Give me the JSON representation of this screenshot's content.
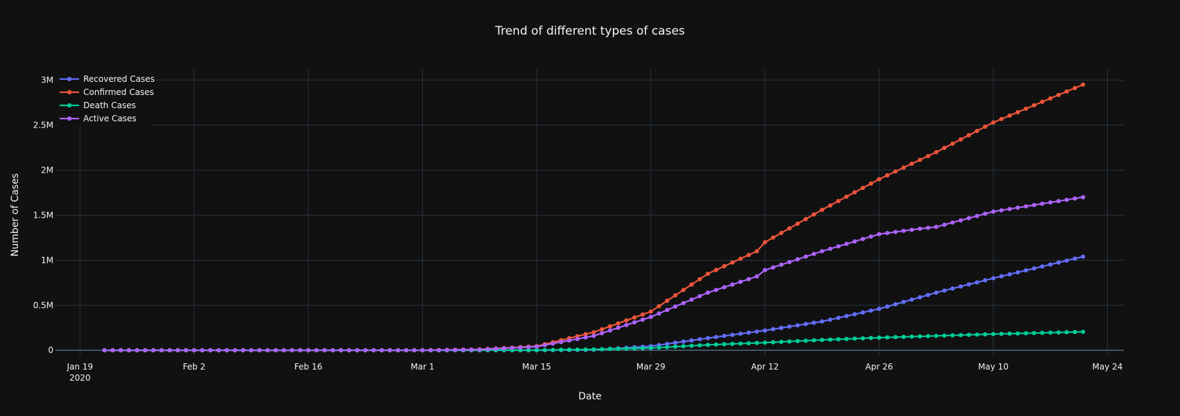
{
  "chart_data": {
    "type": "line",
    "title": "Trend of different types of cases",
    "xlabel": "Date",
    "ylabel": "Number of Cases",
    "grid": true,
    "legend_position": "top-left",
    "x_type": "date",
    "xlim": [
      "2020-01-16",
      "2020-05-26"
    ],
    "ylim": [
      -60000,
      3120000
    ],
    "x_ticks": [
      {
        "date": "2020-01-19",
        "label": "Jan 19",
        "sublabel": "2020"
      },
      {
        "date": "2020-02-02",
        "label": "Feb 2"
      },
      {
        "date": "2020-02-16",
        "label": "Feb 16"
      },
      {
        "date": "2020-03-01",
        "label": "Mar 1"
      },
      {
        "date": "2020-03-15",
        "label": "Mar 15"
      },
      {
        "date": "2020-03-29",
        "label": "Mar 29"
      },
      {
        "date": "2020-04-12",
        "label": "Apr 12"
      },
      {
        "date": "2020-04-26",
        "label": "Apr 26"
      },
      {
        "date": "2020-05-10",
        "label": "May 10"
      },
      {
        "date": "2020-05-24",
        "label": "May 24"
      }
    ],
    "y_ticks": [
      {
        "value": 0,
        "label": "0"
      },
      {
        "value": 500000,
        "label": "0.5M"
      },
      {
        "value": 1000000,
        "label": "1M"
      },
      {
        "value": 1500000,
        "label": "1.5M"
      },
      {
        "value": 2000000,
        "label": "2M"
      },
      {
        "value": 2500000,
        "label": "2.5M"
      },
      {
        "value": 3000000,
        "label": "3M"
      }
    ],
    "start_date": "2020-01-22",
    "end_date": "2020-05-21",
    "series": [
      {
        "name": "Recovered Cases",
        "color": "#636efa",
        "keypoints": [
          [
            "2020-01-22",
            0
          ],
          [
            "2020-02-16",
            0
          ],
          [
            "2020-03-01",
            0
          ],
          [
            "2020-03-15",
            0
          ],
          [
            "2020-03-22",
            5000
          ],
          [
            "2020-03-29",
            45000
          ],
          [
            "2020-04-05",
            135000
          ],
          [
            "2020-04-12",
            220000
          ],
          [
            "2020-04-19",
            320000
          ],
          [
            "2020-04-26",
            460000
          ],
          [
            "2020-05-03",
            640000
          ],
          [
            "2020-05-10",
            800000
          ],
          [
            "2020-05-21",
            1040000
          ]
        ]
      },
      {
        "name": "Confirmed Cases",
        "color": "#ef553b",
        "keypoints": [
          [
            "2020-01-22",
            0
          ],
          [
            "2020-02-16",
            0
          ],
          [
            "2020-03-01",
            0
          ],
          [
            "2020-03-08",
            10000
          ],
          [
            "2020-03-15",
            45000
          ],
          [
            "2020-03-22",
            200000
          ],
          [
            "2020-03-29",
            430000
          ],
          [
            "2020-04-05",
            850000
          ],
          [
            "2020-04-11",
            1100000
          ],
          [
            "2020-04-12",
            1200000
          ],
          [
            "2020-04-19",
            1560000
          ],
          [
            "2020-04-26",
            1900000
          ],
          [
            "2020-05-03",
            2200000
          ],
          [
            "2020-05-10",
            2530000
          ],
          [
            "2020-05-21",
            2950000
          ]
        ]
      },
      {
        "name": "Death Cases",
        "color": "#00cc96",
        "keypoints": [
          [
            "2020-01-22",
            0
          ],
          [
            "2020-03-01",
            0
          ],
          [
            "2020-03-15",
            2000
          ],
          [
            "2020-03-22",
            10000
          ],
          [
            "2020-03-29",
            25000
          ],
          [
            "2020-04-05",
            60000
          ],
          [
            "2020-04-12",
            85000
          ],
          [
            "2020-04-19",
            115000
          ],
          [
            "2020-04-26",
            140000
          ],
          [
            "2020-05-03",
            160000
          ],
          [
            "2020-05-10",
            180000
          ],
          [
            "2020-05-21",
            205000
          ]
        ]
      },
      {
        "name": "Active Cases",
        "color": "#ab63fa",
        "keypoints": [
          [
            "2020-01-22",
            0
          ],
          [
            "2020-02-16",
            0
          ],
          [
            "2020-03-01",
            0
          ],
          [
            "2020-03-08",
            8000
          ],
          [
            "2020-03-15",
            40000
          ],
          [
            "2020-03-22",
            160000
          ],
          [
            "2020-03-29",
            370000
          ],
          [
            "2020-04-05",
            640000
          ],
          [
            "2020-04-11",
            820000
          ],
          [
            "2020-04-12",
            890000
          ],
          [
            "2020-04-19",
            1100000
          ],
          [
            "2020-04-26",
            1290000
          ],
          [
            "2020-05-01",
            1350000
          ],
          [
            "2020-05-03",
            1370000
          ],
          [
            "2020-05-10",
            1540000
          ],
          [
            "2020-05-21",
            1700000
          ]
        ]
      }
    ]
  }
}
